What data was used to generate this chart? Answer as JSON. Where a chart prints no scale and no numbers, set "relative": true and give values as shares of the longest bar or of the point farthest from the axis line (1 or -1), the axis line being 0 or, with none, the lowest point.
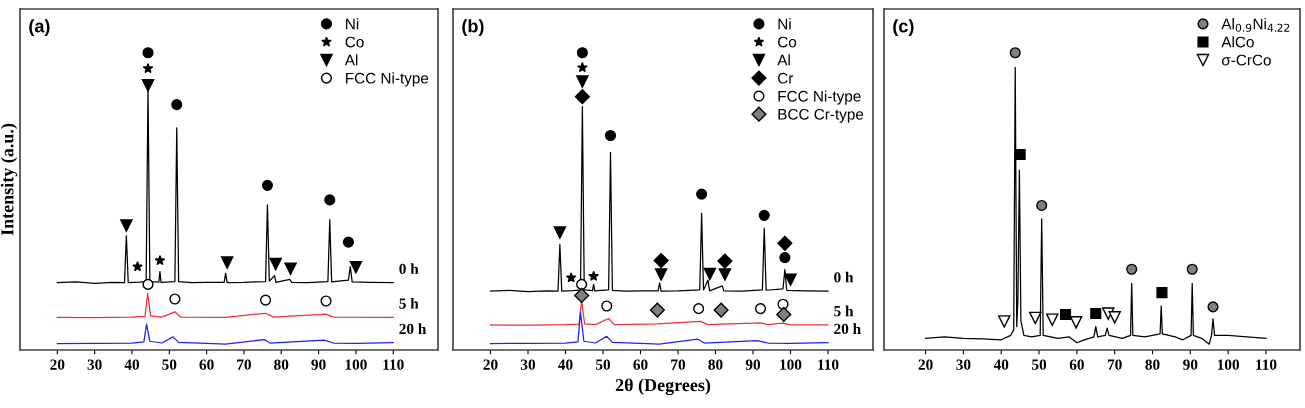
{
  "chart_data": [
    {
      "type": "line",
      "title": "(a)",
      "ylabel": "Intensity (a.u.)",
      "relative": true,
      "xlim": [
        10,
        122
      ],
      "xticks": [
        20,
        30,
        40,
        50,
        60,
        70,
        80,
        90,
        100,
        110
      ],
      "tick_labels": "x",
      "legend": "top right",
      "series": [
        {
          "name": "0 h",
          "color": "#000000",
          "x": [
            20,
            25,
            30,
            35,
            38.0,
            38.5,
            39.0,
            42,
            43.8,
            44.3,
            44.8,
            47.2,
            47.5,
            47.8,
            51.5,
            52.0,
            52.5,
            56,
            60,
            64.7,
            65.1,
            65.5,
            70,
            75.8,
            76.3,
            76.8,
            78.2,
            78.6,
            82.3,
            82.8,
            87,
            92.5,
            93.0,
            93.5,
            98.0,
            98.5,
            99.0,
            104,
            110
          ],
          "values": [
            0.211,
            0.214,
            0.209,
            0.212,
            0.211,
            0.372,
            0.211,
            0.213,
            0.215,
            0.874,
            0.215,
            0.213,
            0.249,
            0.212,
            0.215,
            0.742,
            0.215,
            0.211,
            0.212,
            0.212,
            0.243,
            0.211,
            0.212,
            0.215,
            0.478,
            0.216,
            0.235,
            0.212,
            0.222,
            0.212,
            0.211,
            0.215,
            0.427,
            0.214,
            0.22,
            0.266,
            0.214,
            0.212,
            0.211
          ]
        },
        {
          "name": "5 h",
          "color": "#f03030",
          "x": [
            20,
            30,
            40,
            43.5,
            44.2,
            45,
            48,
            51.5,
            53,
            65,
            75.8,
            78,
            92,
            94,
            110
          ],
          "values": [
            0.092,
            0.091,
            0.093,
            0.095,
            0.174,
            0.097,
            0.093,
            0.111,
            0.093,
            0.092,
            0.106,
            0.093,
            0.103,
            0.093,
            0.092
          ]
        },
        {
          "name": "20 h",
          "color": "#2020f0",
          "x": [
            20,
            30,
            40,
            43.2,
            43.9,
            44.8,
            48,
            51,
            52.5,
            60,
            65,
            75.5,
            77,
            91.5,
            94,
            100,
            110
          ],
          "values": [
            0.002,
            0.003,
            0.004,
            0.008,
            0.069,
            0.01,
            0.004,
            0.025,
            0.006,
            0.003,
            0.0,
            0.016,
            0.004,
            0.014,
            0.004,
            0.003,
            0.005
          ]
        },
        {
          "name": "Ni",
          "type": "scatter",
          "marker": "circle",
          "color": "#000000",
          "x": [
            44.3,
            52,
            76.3,
            93,
            98
          ],
          "values": [
            1.0,
            0.822,
            0.545,
            0.495,
            0.35
          ]
        },
        {
          "name": "Co",
          "type": "scatter",
          "marker": "star",
          "color": "#000000",
          "x": [
            44.3,
            41.5,
            47.5
          ],
          "values": [
            0.946,
            0.266,
            0.287
          ]
        },
        {
          "name": "Al",
          "type": "scatter",
          "marker": "triangle",
          "color": "#000000",
          "x": [
            44.3,
            38.5,
            65.5,
            78.5,
            82.5,
            100
          ],
          "values": [
            0.888,
            0.407,
            0.28,
            0.275,
            0.259,
            0.264
          ]
        },
        {
          "name": "FCC Ni-type",
          "type": "scatter",
          "marker": "circle",
          "color": "#ffffff",
          "x": [
            44.3,
            51.5,
            75.8,
            92
          ],
          "values": [
            0.205,
            0.155,
            0.151,
            0.148
          ]
        }
      ]
    },
    {
      "type": "line",
      "title": "(b)",
      "xlabel": "2θ (Degrees)",
      "relative": true,
      "xlim": [
        10,
        122
      ],
      "xticks": [
        20,
        30,
        40,
        50,
        60,
        70,
        80,
        90,
        100,
        110
      ],
      "tick_labels": "x",
      "legend": "top right",
      "series": [
        {
          "name": "0 h",
          "color": "#000000",
          "x": [
            20,
            25,
            30,
            35,
            38.0,
            38.5,
            39.0,
            42,
            44.0,
            44.5,
            45.0,
            47.2,
            47.5,
            47.8,
            51.5,
            52.0,
            52.5,
            56,
            60,
            64.7,
            65.1,
            65.5,
            70,
            75.8,
            76.3,
            76.8,
            78.0,
            78.4,
            81.8,
            82.2,
            87,
            92.5,
            93.0,
            93.5,
            98.0,
            98.5,
            99.0,
            104,
            110
          ],
          "values": [
            0.182,
            0.185,
            0.18,
            0.183,
            0.182,
            0.342,
            0.182,
            0.184,
            0.186,
            0.815,
            0.186,
            0.184,
            0.205,
            0.183,
            0.186,
            0.658,
            0.185,
            0.182,
            0.183,
            0.183,
            0.21,
            0.182,
            0.183,
            0.186,
            0.449,
            0.186,
            0.22,
            0.183,
            0.2,
            0.183,
            0.182,
            0.186,
            0.398,
            0.185,
            0.19,
            0.256,
            0.185,
            0.183,
            0.182
          ]
        },
        {
          "name": "5 h",
          "color": "#f03030",
          "x": [
            20,
            30,
            40,
            43.6,
            44.3,
            45.1,
            48,
            51.5,
            53,
            64.5,
            76,
            78,
            92,
            94,
            98,
            100,
            110
          ],
          "values": [
            0.066,
            0.065,
            0.067,
            0.069,
            0.149,
            0.07,
            0.067,
            0.088,
            0.067,
            0.07,
            0.078,
            0.067,
            0.073,
            0.067,
            0.072,
            0.066,
            0.066
          ]
        },
        {
          "name": "20 h",
          "color": "#2020f0",
          "x": [
            20,
            30,
            40,
            43.3,
            44.0,
            44.9,
            48,
            51,
            52.5,
            60,
            65,
            75.3,
            77,
            91,
            94,
            100,
            110
          ],
          "values": [
            0.002,
            0.003,
            0.004,
            0.008,
            0.109,
            0.01,
            0.004,
            0.027,
            0.006,
            0.003,
            0.0,
            0.017,
            0.004,
            0.012,
            0.004,
            0.003,
            0.005
          ]
        },
        {
          "name": "Ni",
          "type": "scatter",
          "marker": "circle",
          "color": "#000000",
          "x": [
            44.5,
            52,
            76.3,
            93,
            98.5
          ],
          "values": [
            1.0,
            0.716,
            0.515,
            0.442,
            0.297
          ]
        },
        {
          "name": "Co",
          "type": "scatter",
          "marker": "star",
          "color": "#000000",
          "x": [
            44.5,
            41.5,
            47.5
          ],
          "values": [
            0.949,
            0.228,
            0.233
          ]
        },
        {
          "name": "Al",
          "type": "scatter",
          "marker": "triangle",
          "color": "#000000",
          "x": [
            44.5,
            38.5,
            65.5,
            78.5,
            82.5,
            100
          ],
          "values": [
            0.901,
            0.383,
            0.239,
            0.241,
            0.239,
            0.221
          ]
        },
        {
          "name": "Cr",
          "type": "scatter",
          "marker": "diamond",
          "color": "#000000",
          "x": [
            44.5,
            65.5,
            82.5,
            98.5
          ],
          "values": [
            0.849,
            0.287,
            0.285,
            0.346
          ]
        },
        {
          "name": "FCC Ni-type",
          "type": "scatter",
          "marker": "circle",
          "color": "#ffffff",
          "x": [
            44.3,
            51,
            75.5,
            92,
            98
          ],
          "values": [
            0.205,
            0.131,
            0.122,
            0.122,
            0.137
          ]
        },
        {
          "name": "BCC Cr-type",
          "type": "scatter",
          "marker": "diamond",
          "color": "#808080",
          "x": [
            44.3,
            64.5,
            81.5,
            98.2
          ],
          "values": [
            0.167,
            0.117,
            0.117,
            0.102
          ]
        }
      ]
    },
    {
      "type": "line",
      "title": "(c)",
      "relative": true,
      "xlim": [
        9,
        119
      ],
      "xticks": [
        20,
        30,
        40,
        50,
        60,
        70,
        80,
        90,
        100,
        110
      ],
      "tick_labels": "x",
      "legend": "top right",
      "series": [
        {
          "color": "#000000",
          "x": [
            20,
            25,
            30,
            35,
            40,
            42.5,
            43.3,
            43.7,
            44.1,
            44.4,
            44.8,
            45.2,
            46,
            48,
            50.3,
            50.7,
            51.1,
            55,
            58,
            60,
            62,
            64.5,
            65,
            65.5,
            67.5,
            68,
            68.5,
            72,
            74.2,
            74.5,
            74.8,
            78,
            82,
            82.3,
            82.6,
            86,
            88,
            90.2,
            90.5,
            90.8,
            93,
            95,
            95.6,
            96,
            96.4,
            100,
            105,
            110
          ],
          "values": [
            0.02,
            0.025,
            0.02,
            0.018,
            0.015,
            0.03,
            0.05,
            0.95,
            0.06,
            0.15,
            0.597,
            0.08,
            0.03,
            0.025,
            0.03,
            0.43,
            0.03,
            0.02,
            0.025,
            0.005,
            0.015,
            0.025,
            0.06,
            0.025,
            0.03,
            0.055,
            0.03,
            0.02,
            0.03,
            0.209,
            0.03,
            0.025,
            0.035,
            0.131,
            0.035,
            0.025,
            0.015,
            0.03,
            0.209,
            0.03,
            0.02,
            0.0,
            0.03,
            0.087,
            0.03,
            0.03,
            0.025,
            0.02
          ]
        },
        {
          "name": "Al$_{0.9}$Ni$_{4.22}$",
          "type": "scatter",
          "marker": "circle",
          "color": "#808080",
          "x": [
            43.7,
            50.7,
            74.5,
            90.5,
            96
          ],
          "values": [
            1.0,
            0.476,
            0.257,
            0.257,
            0.128
          ]
        },
        {
          "name": "AlCo",
          "type": "scatter",
          "marker": "square",
          "color": "#000000",
          "x": [
            45,
            57,
            65,
            82.5
          ],
          "values": [
            0.651,
            0.102,
            0.105,
            0.177
          ]
        },
        {
          "name": "σ-CrCo",
          "type": "scatter",
          "marker": "triangle",
          "color": "#ffffff",
          "x": [
            40.8,
            49,
            53.5,
            59.8,
            68.3,
            70
          ],
          "values": [
            0.078,
            0.09,
            0.084,
            0.075,
            0.105,
            0.092
          ]
        }
      ]
    }
  ]
}
